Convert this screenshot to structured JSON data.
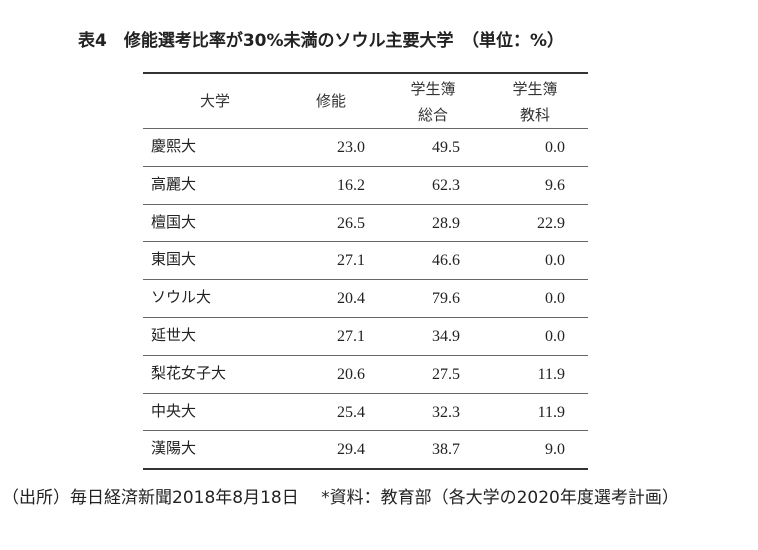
{
  "title": "表4　修能選考比率が30%未満のソウル主要大学　（単位：%）",
  "table": {
    "header": [
      [
        "大学"
      ],
      [
        "修能"
      ],
      [
        "学生簿",
        "総合"
      ],
      [
        "学生簿",
        "教科"
      ]
    ],
    "rows": [
      [
        "慶熙大",
        "23.0",
        "49.5",
        "0.0"
      ],
      [
        "高麗大",
        "16.2",
        "62.3",
        "9.6"
      ],
      [
        "檀国大",
        "26.5",
        "28.9",
        "22.9"
      ],
      [
        "東国大",
        "27.1",
        "46.6",
        "0.0"
      ],
      [
        "ソウル大",
        "20.4",
        "79.6",
        "0.0"
      ],
      [
        "延世大",
        "27.1",
        "34.9",
        "0.0"
      ],
      [
        "梨花女子大",
        "20.6",
        "27.5",
        "11.9"
      ],
      [
        "中央大",
        "25.4",
        "32.3",
        "11.9"
      ],
      [
        "漢陽大",
        "29.4",
        "38.7",
        "9.0"
      ]
    ]
  },
  "footnote": "（出所）毎日経済新聞2018年8月18日　 *資料：教育部（各大学の2020年度選考計画）"
}
